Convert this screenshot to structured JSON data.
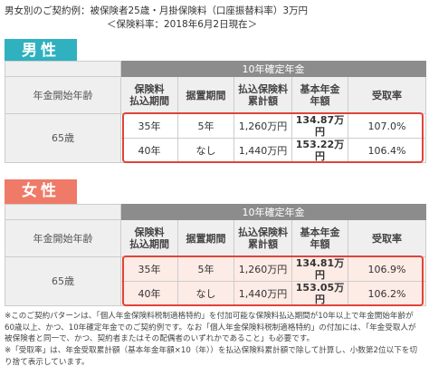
{
  "header": {
    "line1": "男女別のご契約例：被保険者25歳・月掛保険料（口座振替料率）3万円",
    "line2": "＜保険料率：2018年6月2日現在＞"
  },
  "sections": [
    {
      "label": "男性",
      "table": {
        "group": "10年確定年金",
        "row_header": "年金開始年齢",
        "columns": [
          "保険料\n払込期間",
          "据置期間",
          "払込保険料\n累計額",
          "基本年金\n年額",
          "受取率"
        ],
        "age": "65歳",
        "rows": [
          [
            "35年",
            "5年",
            "1,260万円",
            "134.87万円",
            "107.0%"
          ],
          [
            "40年",
            "なし",
            "1,440万円",
            "153.22万円",
            "106.4%"
          ]
        ]
      }
    },
    {
      "label": "女性",
      "table": {
        "group": "10年確定年金",
        "row_header": "年金開始年齢",
        "columns": [
          "保険料\n払込期間",
          "据置期間",
          "払込保険料\n累計額",
          "基本年金\n年額",
          "受取率"
        ],
        "age": "65歳",
        "rows": [
          [
            "35年",
            "5年",
            "1,260万円",
            "134.81万円",
            "106.9%"
          ],
          [
            "40年",
            "なし",
            "1,440万円",
            "153.05万円",
            "106.2%"
          ]
        ]
      }
    }
  ],
  "notes": [
    "※このご契約パターンは、「個人年金保険料税制適格特約」を付加可能な保険料払込期間が10年以上で年金開始年齢が60歳以上、かつ、10年確定年金でのご契約例です。なお「個人年金保険料税制適格特約」の付加には、「年金受取人が被保険者と同一で、かつ、契約者またはその配偶者のいずれかであること」も必要です。",
    "※「受取率」は、年金受取累計額（基本年金年額×10（年））を払込保険料累計額で除して計算し、小数第2位以下を切り捨て表示しています。"
  ]
}
